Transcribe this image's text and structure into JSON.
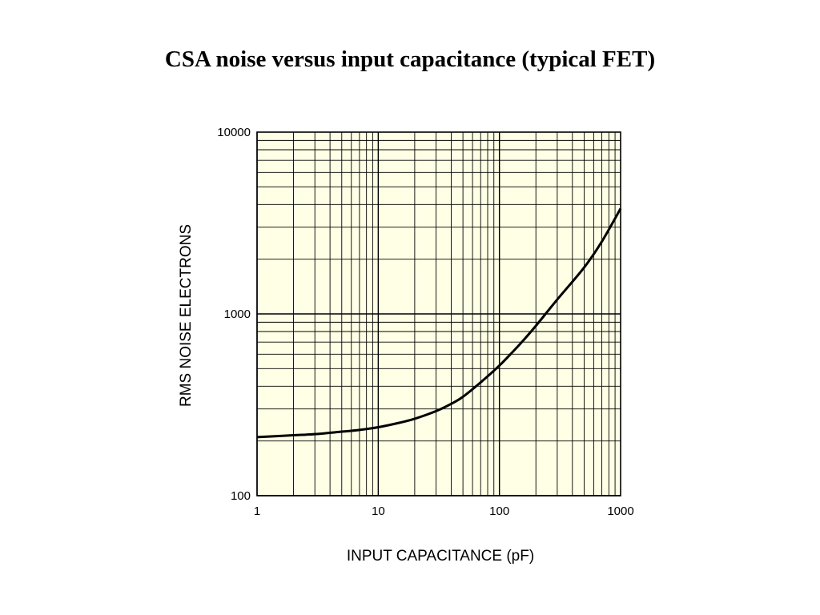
{
  "slide": {
    "title": "CSA noise versus input capacitance (typical FET)"
  },
  "colors": {
    "plot_background": "#ffffe6",
    "grid": "#000000",
    "curve": "#000000"
  },
  "chart_data": {
    "type": "line",
    "title": "",
    "xlabel": "INPUT CAPACITANCE (pF)",
    "ylabel": "RMS NOISE ELECTRONS",
    "xscale": "log",
    "yscale": "log",
    "xlim": [
      1,
      1000
    ],
    "ylim": [
      100,
      10000
    ],
    "grid": true,
    "x_tick_labels": [
      "1",
      "10",
      "100",
      "1000"
    ],
    "y_tick_labels": [
      "100",
      "1000",
      "10000"
    ],
    "series": [
      {
        "x": [
          1,
          2,
          3,
          5,
          7,
          10,
          15,
          20,
          30,
          40,
          50,
          70,
          100,
          150,
          200,
          300,
          500,
          700,
          1000
        ],
        "y": [
          210,
          215,
          218,
          225,
          230,
          238,
          252,
          265,
          292,
          320,
          350,
          420,
          520,
          690,
          860,
          1200,
          1800,
          2500,
          3800
        ]
      }
    ]
  }
}
